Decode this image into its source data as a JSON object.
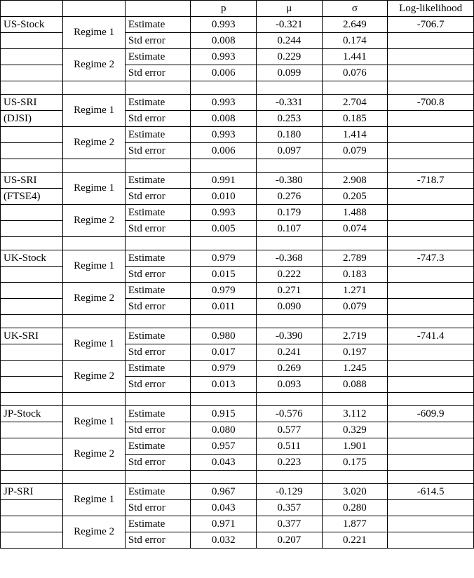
{
  "header": {
    "p": "p",
    "mu": "μ",
    "sigma": "σ",
    "ll": "Log-likelihood"
  },
  "labels": {
    "estimate": "Estimate",
    "stderr": "Std error",
    "regime1": "Regime 1",
    "regime2": "Regime 2"
  },
  "groups": [
    {
      "name1": "US-Stock",
      "name2": "",
      "ll": "-706.7",
      "rows": [
        {
          "p": "0.993",
          "mu": "-0.321",
          "sigma": "2.649"
        },
        {
          "p": "0.008",
          "mu": "0.244",
          "sigma": "0.174"
        },
        {
          "p": "0.993",
          "mu": "0.229",
          "sigma": "1.441"
        },
        {
          "p": "0.006",
          "mu": "0.099",
          "sigma": "0.076"
        }
      ]
    },
    {
      "name1": "US-SRI",
      "name2": "(DJSI)",
      "ll": "-700.8",
      "rows": [
        {
          "p": "0.993",
          "mu": "-0.331",
          "sigma": "2.704"
        },
        {
          "p": "0.008",
          "mu": "0.253",
          "sigma": "0.185"
        },
        {
          "p": "0.993",
          "mu": "0.180",
          "sigma": "1.414"
        },
        {
          "p": "0.006",
          "mu": "0.097",
          "sigma": "0.079"
        }
      ]
    },
    {
      "name1": "US-SRI",
      "name2": "(FTSE4)",
      "ll": "-718.7",
      "rows": [
        {
          "p": "0.991",
          "mu": "-0.380",
          "sigma": "2.908"
        },
        {
          "p": "0.010",
          "mu": "0.276",
          "sigma": "0.205"
        },
        {
          "p": "0.993",
          "mu": "0.179",
          "sigma": "1.488"
        },
        {
          "p": "0.005",
          "mu": "0.107",
          "sigma": "0.074"
        }
      ]
    },
    {
      "name1": "UK-Stock",
      "name2": "",
      "ll": "-747.3",
      "rows": [
        {
          "p": "0.979",
          "mu": "-0.368",
          "sigma": "2.789"
        },
        {
          "p": "0.015",
          "mu": "0.222",
          "sigma": "0.183"
        },
        {
          "p": "0.979",
          "mu": "0.271",
          "sigma": "1.271"
        },
        {
          "p": "0.011",
          "mu": "0.090",
          "sigma": "0.079"
        }
      ]
    },
    {
      "name1": "UK-SRI",
      "name2": "",
      "ll": "-741.4",
      "rows": [
        {
          "p": "0.980",
          "mu": "-0.390",
          "sigma": "2.719"
        },
        {
          "p": "0.017",
          "mu": "0.241",
          "sigma": "0.197"
        },
        {
          "p": "0.979",
          "mu": "0.269",
          "sigma": "1.245"
        },
        {
          "p": "0.013",
          "mu": "0.093",
          "sigma": "0.088"
        }
      ]
    },
    {
      "name1": "JP-Stock",
      "name2": "",
      "ll": "-609.9",
      "rows": [
        {
          "p": "0.915",
          "mu": "-0.576",
          "sigma": "3.112"
        },
        {
          "p": "0.080",
          "mu": "0.577",
          "sigma": "0.329"
        },
        {
          "p": "0.957",
          "mu": "0.511",
          "sigma": "1.901"
        },
        {
          "p": "0.043",
          "mu": "0.223",
          "sigma": "0.175"
        }
      ]
    },
    {
      "name1": "JP-SRI",
      "name2": "",
      "ll": "-614.5",
      "rows": [
        {
          "p": "0.967",
          "mu": "-0.129",
          "sigma": "3.020"
        },
        {
          "p": "0.043",
          "mu": "0.357",
          "sigma": "0.280"
        },
        {
          "p": "0.971",
          "mu": "0.377",
          "sigma": "1.877"
        },
        {
          "p": "0.032",
          "mu": "0.207",
          "sigma": "0.221"
        }
      ]
    }
  ]
}
